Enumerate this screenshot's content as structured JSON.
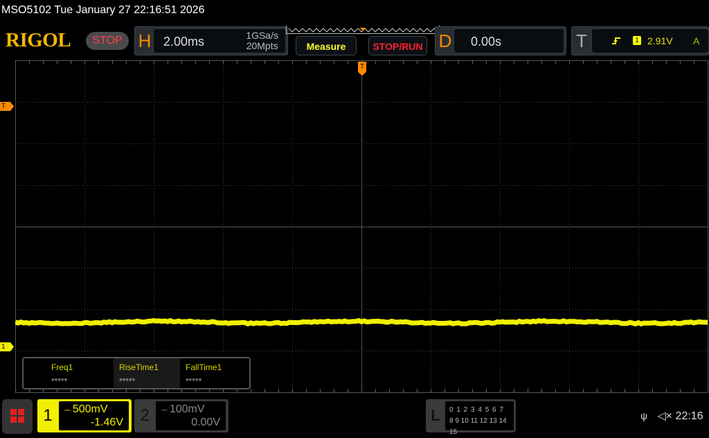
{
  "header": {
    "title": "MSO5102  Tue January 27 22:16:51 2026",
    "logo": "RIGOL",
    "run_state": "STOP"
  },
  "horizontal": {
    "letter": "H",
    "timebase": "2.00ms",
    "sample_rate": "1GSa/s",
    "memory_depth": "20Mpts"
  },
  "buttons": {
    "measure": "Measure",
    "stop_run": "STOP/RUN"
  },
  "delay": {
    "letter": "D",
    "value": "0.00s"
  },
  "trigger": {
    "letter": "T",
    "slope_icon": "rising-edge-icon",
    "source": "1",
    "level": "2.91V",
    "mode": "A"
  },
  "markers": {
    "trigger_level": "T",
    "trigger_pos": "T",
    "channel1": "1"
  },
  "measurements": [
    {
      "name": "Freq1",
      "value": "*****"
    },
    {
      "name": "RiseTime1",
      "value": "*****"
    },
    {
      "name": "FallTime1",
      "value": "*****"
    }
  ],
  "channels": [
    {
      "num": "1",
      "scale": "500mV",
      "offset": "-1.46V",
      "color": "#f0f000",
      "active": true
    },
    {
      "num": "2",
      "scale": "100mV",
      "offset": "0.00V",
      "color": "#888888",
      "active": false
    }
  ],
  "logic": {
    "letter": "L",
    "row1": "0 1 2 3  4 5 6 7",
    "row2": "8 9 10 11 12 13 14 15"
  },
  "status": {
    "usb_icon": "usb-icon",
    "sound_icon": "speaker-muted-icon",
    "time": "22:16"
  },
  "colors": {
    "ch1": "#f0f000",
    "accent": "#ff8a00",
    "stop": "#ff2030"
  }
}
